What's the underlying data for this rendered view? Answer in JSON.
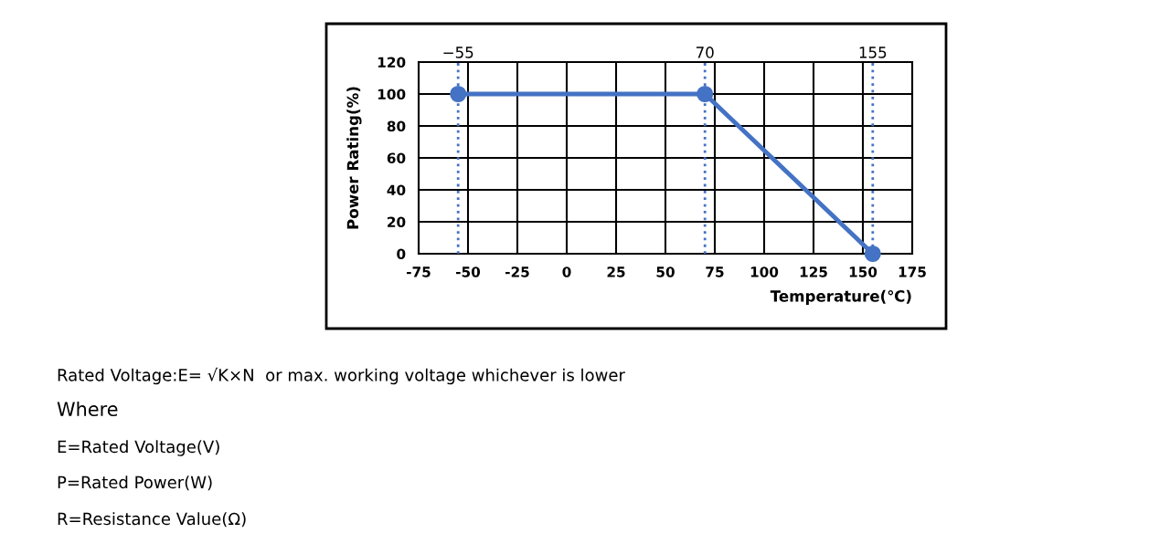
{
  "chart_data": {
    "type": "line",
    "xlabel": "Temperature(℃)",
    "ylabel": "Power Rating(%)",
    "x": [
      -55,
      70,
      155
    ],
    "series": [
      {
        "color": "#4472c4",
        "values": [
          100,
          100,
          0
        ]
      }
    ],
    "marker": "circle",
    "line_style": "solid",
    "xlim": [
      -75,
      175
    ],
    "xticks": [
      -75,
      -50,
      -25,
      0,
      25,
      50,
      75,
      100,
      125,
      150,
      175
    ],
    "ylim": [
      0,
      120
    ],
    "yticks": [
      0,
      20,
      40,
      60,
      80,
      100,
      120
    ],
    "grid": true,
    "ref_lines": [
      {
        "axis": "x",
        "value": -55,
        "label": "−55",
        "color": "#4472c4",
        "line_style": "dotted"
      },
      {
        "axis": "x",
        "value": 70,
        "label": "70",
        "color": "#4472c4",
        "line_style": "dotted"
      },
      {
        "axis": "x",
        "value": 155,
        "label": "155",
        "color": "#4472c4",
        "line_style": "dotted"
      }
    ],
    "annotations": [
      "Rated Voltage:E= √K×N  or max. working voltage whichever is lower",
      "Where",
      "E=Rated Voltage(V)",
      "P=Rated Power(W)",
      "R=Resistance Value(Ω)"
    ]
  }
}
